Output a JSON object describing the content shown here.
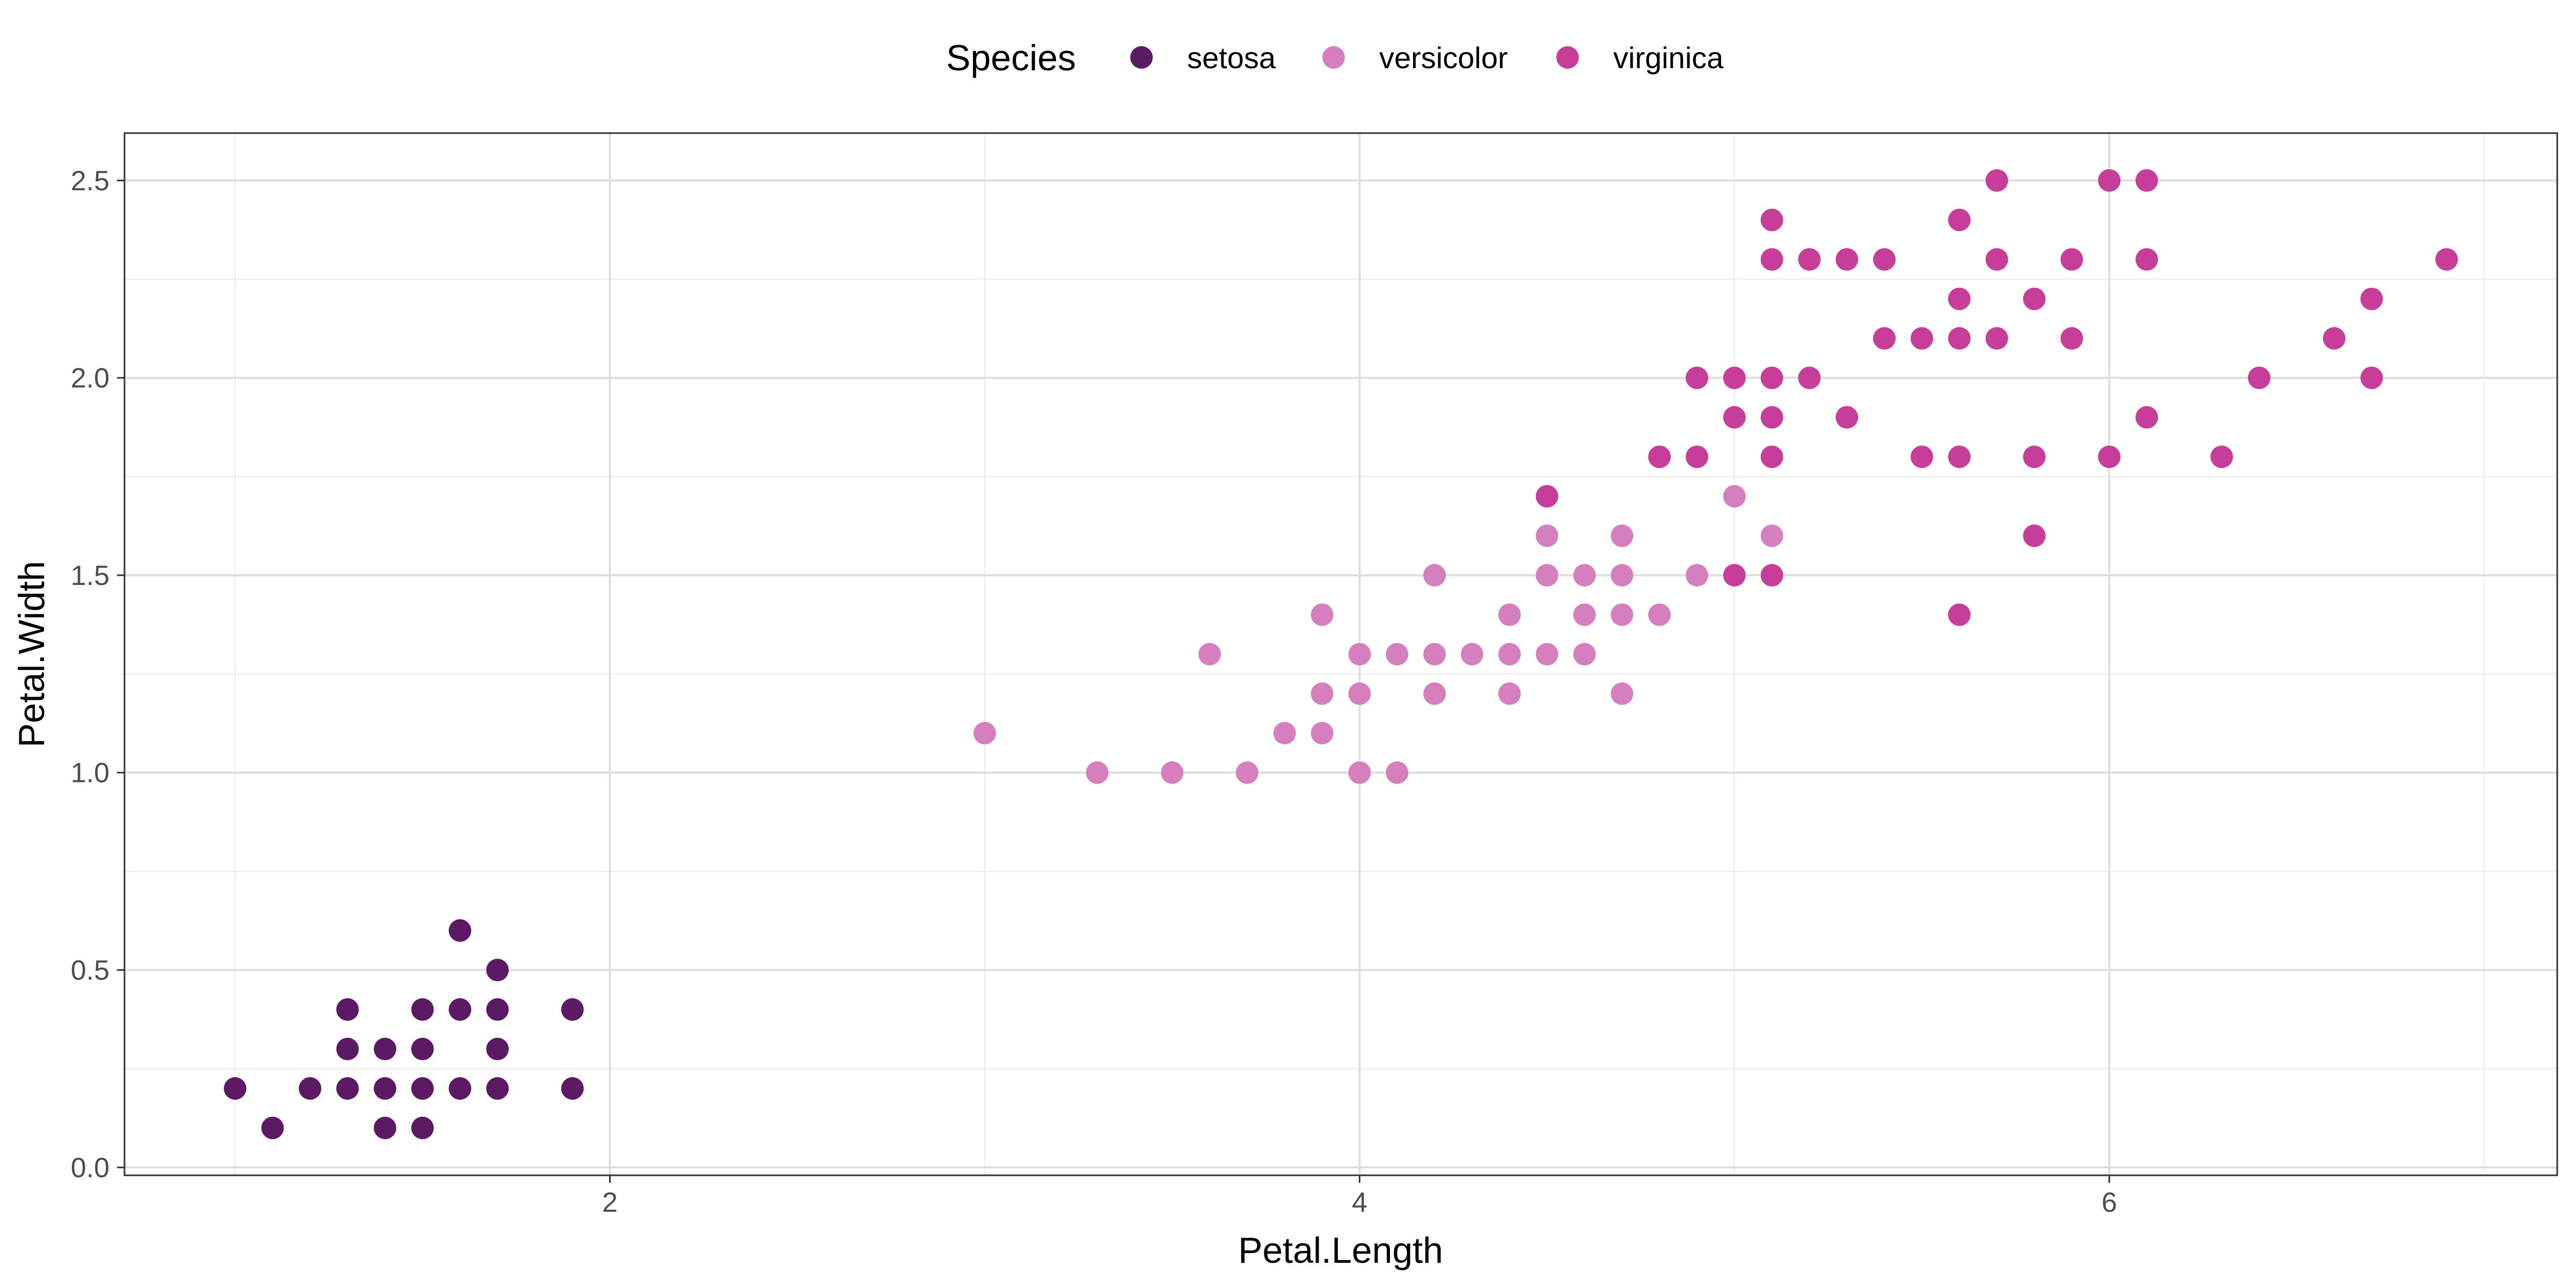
{
  "chart_data": {
    "type": "scatter",
    "xlabel": "Petal.Length",
    "ylabel": "Petal.Width",
    "xlim": [
      0.705,
      7.195
    ],
    "ylim": [
      -0.02,
      2.62
    ],
    "x_ticks": [
      2,
      4,
      6
    ],
    "y_ticks": [
      0.0,
      0.5,
      1.0,
      1.5,
      2.0,
      2.5
    ],
    "y_tick_labels": [
      "0.0",
      "0.5",
      "1.0",
      "1.5",
      "2.0",
      "2.5"
    ],
    "grid": true,
    "legend": {
      "title": "Species",
      "position": "top"
    },
    "series": [
      {
        "name": "setosa",
        "color": "#5B1A63",
        "points": [
          [
            1.0,
            0.2
          ],
          [
            1.1,
            0.1
          ],
          [
            1.2,
            0.2
          ],
          [
            1.3,
            0.2
          ],
          [
            1.3,
            0.3
          ],
          [
            1.3,
            0.4
          ],
          [
            1.4,
            0.1
          ],
          [
            1.4,
            0.2
          ],
          [
            1.4,
            0.3
          ],
          [
            1.5,
            0.1
          ],
          [
            1.5,
            0.2
          ],
          [
            1.5,
            0.3
          ],
          [
            1.5,
            0.4
          ],
          [
            1.6,
            0.2
          ],
          [
            1.6,
            0.4
          ],
          [
            1.6,
            0.6
          ],
          [
            1.7,
            0.2
          ],
          [
            1.7,
            0.3
          ],
          [
            1.7,
            0.4
          ],
          [
            1.7,
            0.5
          ],
          [
            1.9,
            0.2
          ],
          [
            1.9,
            0.4
          ]
        ]
      },
      {
        "name": "versicolor",
        "color": "#D67FBF",
        "points": [
          [
            3.0,
            1.1
          ],
          [
            3.3,
            1.0
          ],
          [
            3.5,
            1.0
          ],
          [
            3.6,
            1.3
          ],
          [
            3.7,
            1.0
          ],
          [
            3.8,
            1.1
          ],
          [
            3.9,
            1.1
          ],
          [
            3.9,
            1.2
          ],
          [
            3.9,
            1.4
          ],
          [
            4.0,
            1.0
          ],
          [
            4.0,
            1.2
          ],
          [
            4.0,
            1.3
          ],
          [
            4.1,
            1.0
          ],
          [
            4.1,
            1.3
          ],
          [
            4.2,
            1.2
          ],
          [
            4.2,
            1.3
          ],
          [
            4.2,
            1.5
          ],
          [
            4.3,
            1.3
          ],
          [
            4.4,
            1.2
          ],
          [
            4.4,
            1.3
          ],
          [
            4.4,
            1.4
          ],
          [
            4.5,
            1.3
          ],
          [
            4.5,
            1.5
          ],
          [
            4.5,
            1.6
          ],
          [
            4.6,
            1.3
          ],
          [
            4.6,
            1.4
          ],
          [
            4.6,
            1.5
          ],
          [
            4.7,
            1.2
          ],
          [
            4.7,
            1.4
          ],
          [
            4.7,
            1.5
          ],
          [
            4.7,
            1.6
          ],
          [
            4.8,
            1.4
          ],
          [
            4.8,
            1.8
          ],
          [
            4.9,
            1.5
          ],
          [
            5.0,
            1.7
          ],
          [
            5.1,
            1.6
          ]
        ]
      },
      {
        "name": "virginica",
        "color": "#C63D9A",
        "points": [
          [
            4.5,
            1.7
          ],
          [
            4.8,
            1.8
          ],
          [
            4.9,
            1.8
          ],
          [
            4.9,
            2.0
          ],
          [
            5.0,
            1.5
          ],
          [
            5.0,
            1.9
          ],
          [
            5.0,
            2.0
          ],
          [
            5.1,
            1.5
          ],
          [
            5.1,
            1.8
          ],
          [
            5.1,
            1.9
          ],
          [
            5.1,
            2.0
          ],
          [
            5.1,
            2.3
          ],
          [
            5.1,
            2.4
          ],
          [
            5.2,
            2.0
          ],
          [
            5.2,
            2.3
          ],
          [
            5.3,
            1.9
          ],
          [
            5.3,
            2.3
          ],
          [
            5.4,
            2.1
          ],
          [
            5.4,
            2.3
          ],
          [
            5.5,
            1.8
          ],
          [
            5.5,
            2.1
          ],
          [
            5.6,
            1.4
          ],
          [
            5.6,
            1.8
          ],
          [
            5.6,
            2.1
          ],
          [
            5.6,
            2.2
          ],
          [
            5.6,
            2.4
          ],
          [
            5.7,
            2.1
          ],
          [
            5.7,
            2.3
          ],
          [
            5.7,
            2.5
          ],
          [
            5.8,
            1.6
          ],
          [
            5.8,
            1.8
          ],
          [
            5.8,
            2.2
          ],
          [
            5.9,
            2.1
          ],
          [
            5.9,
            2.3
          ],
          [
            6.0,
            1.8
          ],
          [
            6.0,
            2.5
          ],
          [
            6.1,
            1.9
          ],
          [
            6.1,
            2.3
          ],
          [
            6.1,
            2.5
          ],
          [
            6.3,
            1.8
          ],
          [
            6.4,
            2.0
          ],
          [
            6.6,
            2.1
          ],
          [
            6.7,
            2.0
          ],
          [
            6.7,
            2.2
          ],
          [
            6.9,
            2.3
          ]
        ]
      }
    ]
  }
}
